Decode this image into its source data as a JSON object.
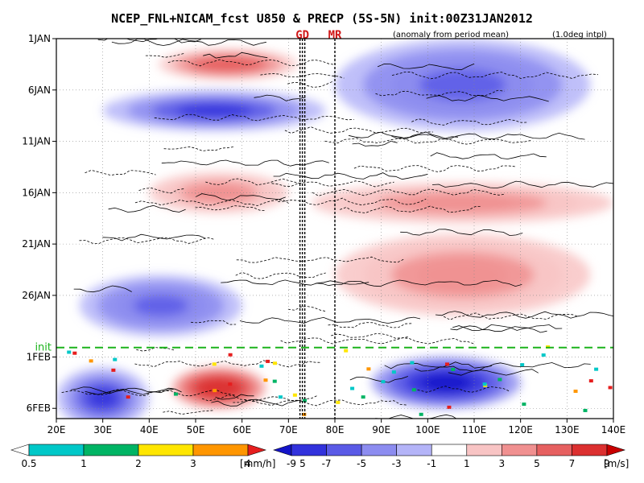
{
  "chart_data": {
    "type": "heatmap",
    "title": "NCEP_FNL+NICAM_fcst U850 & PRECP (5S-5N) init:00Z31JAN2012",
    "subtitle_left": "(anomaly from period mean)",
    "subtitle_right": "(1.0deg intpl)",
    "x_axis": {
      "range": [
        20,
        140
      ],
      "ticks": [
        20,
        30,
        40,
        50,
        60,
        70,
        80,
        90,
        100,
        110,
        120,
        130,
        140
      ],
      "tick_labels": [
        "20E",
        "30E",
        "40E",
        "50E",
        "60E",
        "70E",
        "80E",
        "90E",
        "100E",
        "110E",
        "120E",
        "130E",
        "140E"
      ]
    },
    "y_axis": {
      "range_days": [
        "1JAN2012",
        "7FEB2012"
      ],
      "ticks": [
        "1JAN",
        "6JAN",
        "11JAN",
        "16JAN",
        "21JAN",
        "26JAN",
        "1FEB",
        "6FEB"
      ],
      "tick_labels": [
        "1JAN",
        "6JAN",
        "11JAN",
        "16JAN",
        "21JAN",
        "26JAN",
        "1FEB",
        "6FEB"
      ],
      "reversed": true
    },
    "markers": [
      {
        "label": "GD",
        "lon": 73,
        "style": "double dashed black line"
      },
      {
        "label": "MR",
        "lon": 80,
        "style": "dashed black line"
      }
    ],
    "init_line": {
      "label": "init",
      "date": "31JAN",
      "color": "#1bb31b"
    },
    "precip_colorbar": {
      "levels": [
        "0.5",
        "1",
        "2",
        "3",
        "4",
        "5"
      ],
      "unit": "[mm/h]",
      "colors": [
        "#ffffff",
        "#00c8c8",
        "#00b464",
        "#ffe600",
        "#ff9600",
        "#e61e1e"
      ]
    },
    "wind_colorbar": {
      "levels": [
        "-9",
        "-7",
        "-5",
        "-3",
        "-1",
        "1",
        "3",
        "5",
        "7",
        "9"
      ],
      "unit": "[m/s]",
      "colors": [
        "#1414c8",
        "#3232dc",
        "#5a5ae6",
        "#8c8cf0",
        "#b4b4f8",
        "#ffffff",
        "#f8c4c4",
        "#f09090",
        "#e66060",
        "#dc3030",
        "#c80000"
      ]
    },
    "u850_anomaly_features": [
      {
        "lon": [
          42,
          72
        ],
        "date": "2JAN-4JAN",
        "sign": "westerly",
        "max": 7
      },
      {
        "lon": [
          30,
          78
        ],
        "date": "6JAN-9JAN",
        "sign": "easterly",
        "min": -7
      },
      {
        "lon": [
          80,
          135
        ],
        "date": "1JAN-9JAN",
        "sign": "easterly",
        "min": -5
      },
      {
        "lon": [
          40,
          70
        ],
        "date": "14JAN-17JAN",
        "sign": "westerly",
        "max": 5
      },
      {
        "lon": [
          75,
          140
        ],
        "date": "15JAN-18JAN",
        "sign": "westerly",
        "max": 5
      },
      {
        "lon": [
          25,
          60
        ],
        "date": "24JAN-29JAN",
        "sign": "easterly",
        "min": -5
      },
      {
        "lon": [
          80,
          135
        ],
        "date": "20JAN-27JAN",
        "sign": "westerly",
        "max": 5
      },
      {
        "lon": [
          45,
          65
        ],
        "date": "2FEB-5FEB",
        "sign": "westerly",
        "max": 9
      },
      {
        "lon": [
          88,
          120
        ],
        "date": "1FEB-5FEB",
        "sign": "easterly",
        "min": -9
      },
      {
        "lon": [
          20,
          40
        ],
        "date": "2FEB-7FEB",
        "sign": "easterly",
        "min": -7
      }
    ]
  }
}
